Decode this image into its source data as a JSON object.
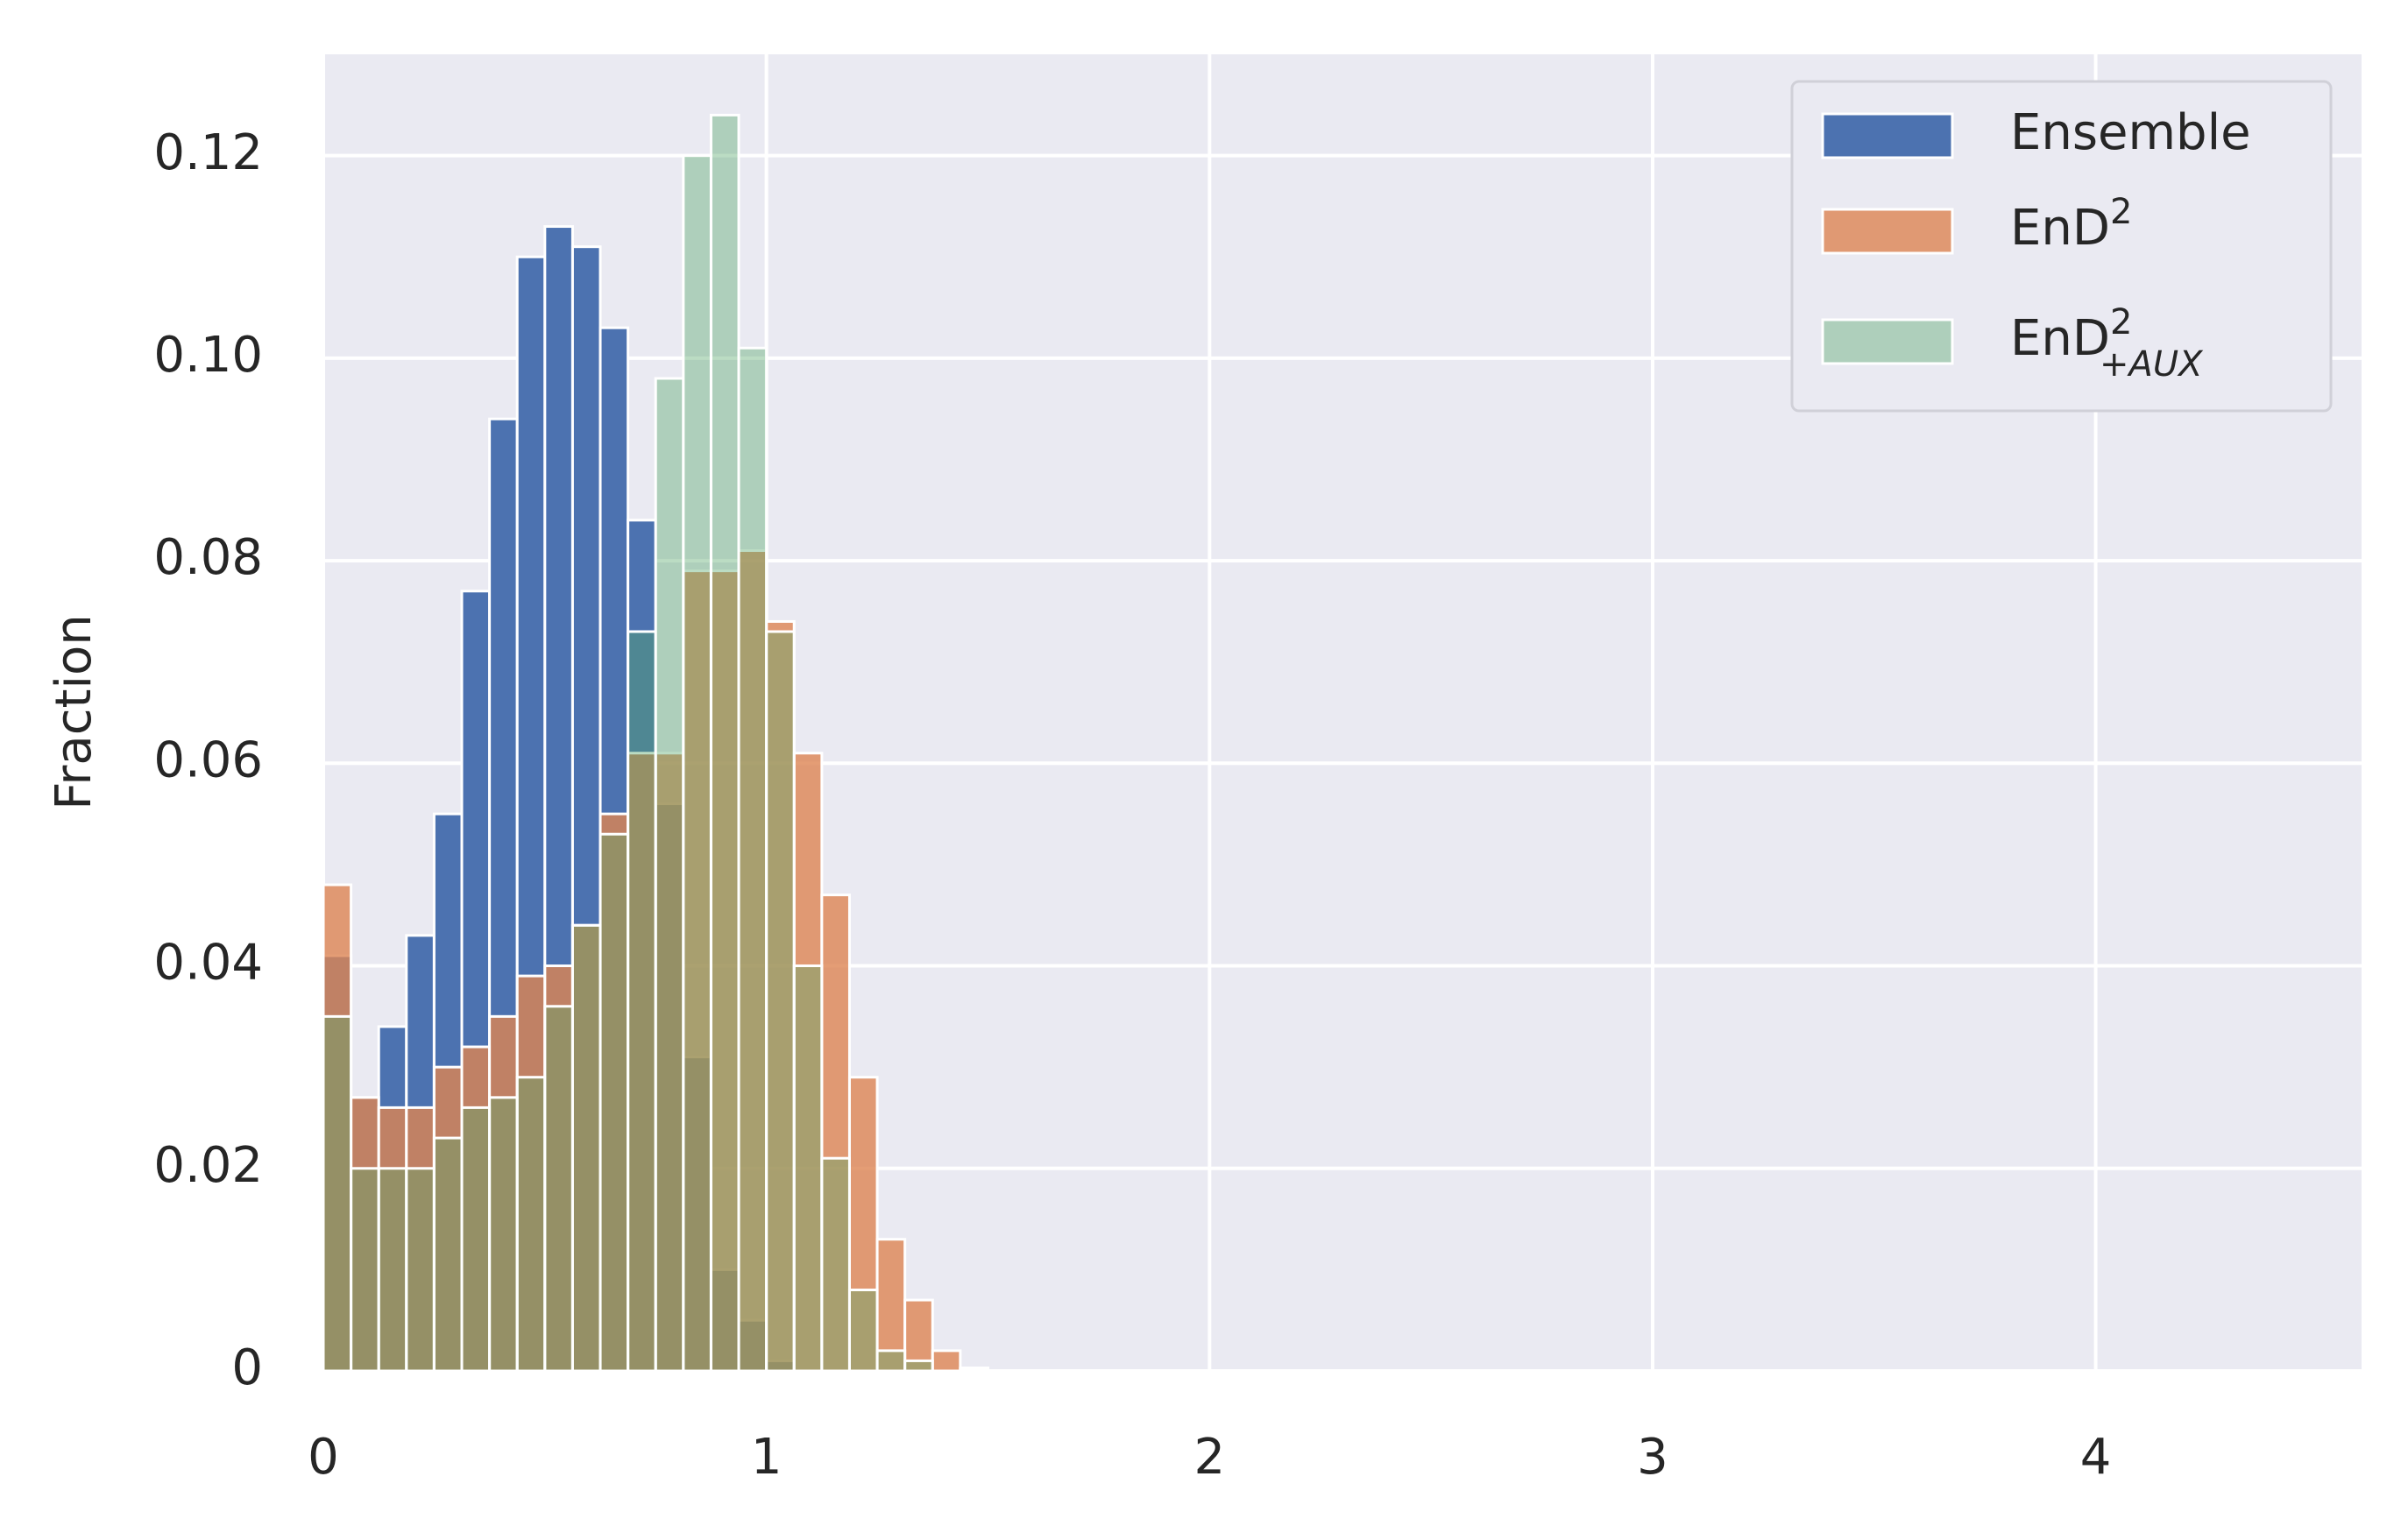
{
  "chart_data": {
    "type": "histogram",
    "y_label": "Fraction",
    "bins": [
      0,
      0.0625,
      0.125,
      0.1875,
      0.25,
      0.3125,
      0.375,
      0.4375,
      0.5,
      0.5625,
      0.625,
      0.6875,
      0.75,
      0.8125,
      0.875,
      0.9375,
      1,
      1.0625,
      1.125,
      1.1875,
      1.25,
      1.3125,
      1.375,
      1.4375,
      1.5
    ],
    "series": [
      {
        "name": "Ensemble",
        "color": "#4c72b0",
        "opacity": 1,
        "values": [
          0.041,
          0.027,
          0.034,
          0.043,
          0.055,
          0.077,
          0.094,
          0.11,
          0.113,
          0.111,
          0.103,
          0.084,
          0.056,
          0.031,
          0.01,
          0.005,
          0.001,
          0,
          0,
          0,
          0,
          0,
          0,
          0
        ]
      },
      {
        "name": "EnD^2",
        "color": "#dd8452",
        "opacity": 0.8,
        "values": [
          0.048,
          0.027,
          0.026,
          0.026,
          0.03,
          0.032,
          0.035,
          0.039,
          0.04,
          0.044,
          0.055,
          0.061,
          0.061,
          0.079,
          0.079,
          0.081,
          0.074,
          0.061,
          0.047,
          0.029,
          0.013,
          0.007,
          0.002,
          0.0003
        ]
      },
      {
        "name": "EnD^2_+AUX",
        "color": "#55a868",
        "opacity": 0.4,
        "values": [
          0.035,
          0.02,
          0.02,
          0.02,
          0.023,
          0.026,
          0.027,
          0.029,
          0.036,
          0.044,
          0.053,
          0.073,
          0.098,
          0.12,
          0.124,
          0.101,
          0.073,
          0.04,
          0.021,
          0.008,
          0.002,
          0.001,
          0,
          0.0002
        ]
      }
    ],
    "xlim": [
      0,
      4.6
    ],
    "xticks": [
      0,
      1,
      2,
      3,
      4
    ],
    "ylim": [
      0,
      0.13
    ],
    "yticks": [
      0,
      {
        "value": 0.02,
        "label": "0.02"
      },
      {
        "value": 0.04,
        "label": "0.04"
      },
      {
        "value": 0.06,
        "label": "0.06"
      },
      {
        "value": 0.08,
        "label": "0.08"
      },
      {
        "value": 0.1,
        "label": "0.10"
      },
      {
        "value": 0.12,
        "label": "0.12"
      }
    ],
    "grid": true,
    "legend": "upper right"
  }
}
